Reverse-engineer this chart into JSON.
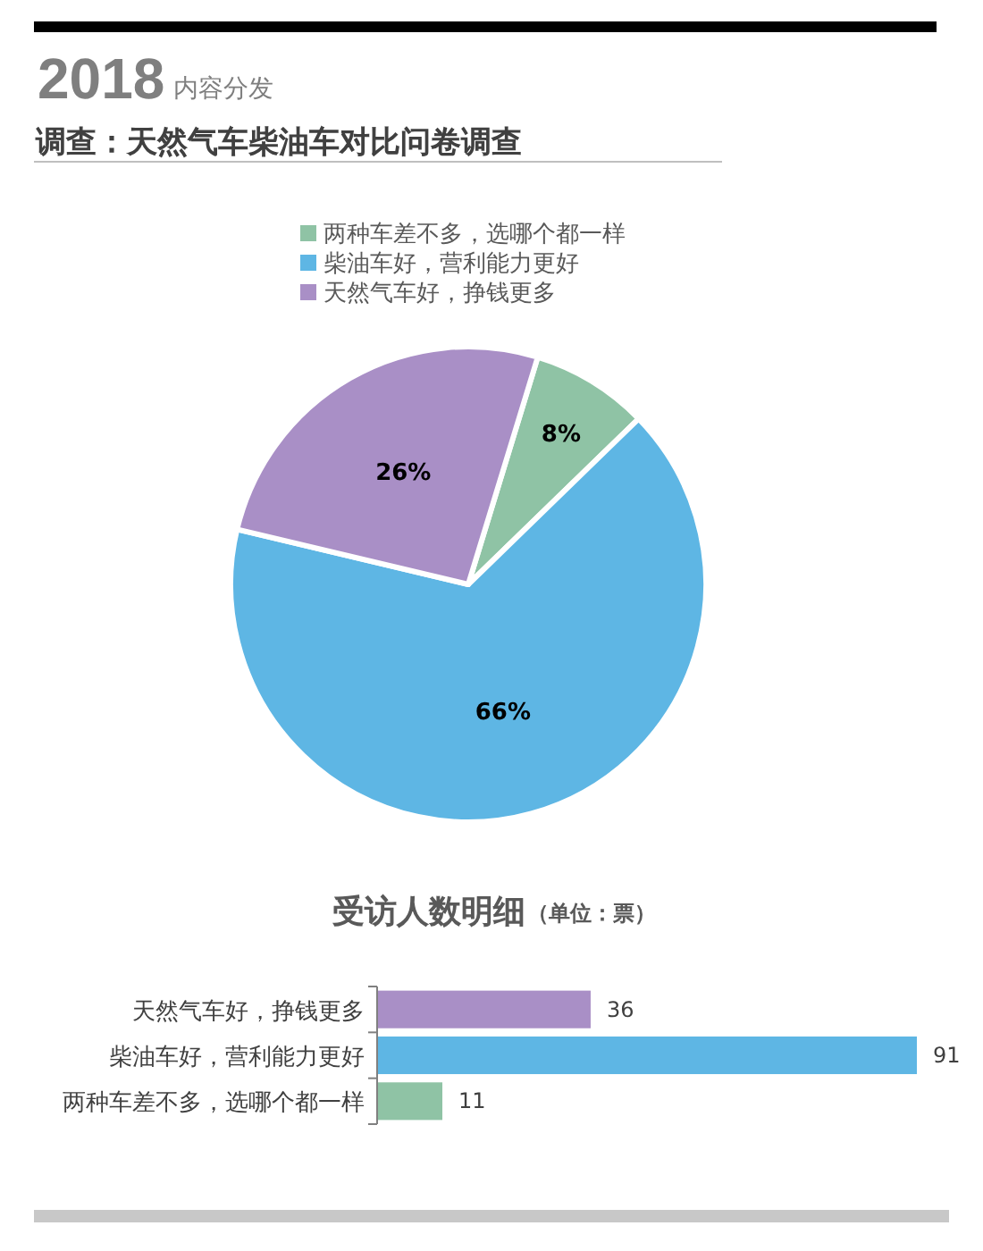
{
  "chart_data": [
    {
      "type": "pie",
      "title": "调查：天然气车柴油车对比问卷调查",
      "annotations": [
        "2018",
        "内容分发"
      ],
      "categories": [
        "两种车差不多，选哪个都一样",
        "柴油车好，营利能力更好",
        "天然气车好，挣钱更多"
      ],
      "values": [
        8,
        66,
        26
      ],
      "colors": [
        "#8fc3a5",
        "#5eb6e4",
        "#a98fc6"
      ],
      "value_labels": [
        "8%",
        "66%",
        "26%"
      ],
      "legend": "top"
    },
    {
      "type": "bar",
      "orientation": "horizontal",
      "title": "受访人数明细",
      "subtitle": "（单位：票）",
      "categories": [
        "天然气车好，挣钱更多",
        "柴油车好，营利能力更好",
        "两种车差不多，选哪个都一样"
      ],
      "values": [
        36,
        91,
        11
      ],
      "colors": [
        "#a98fc6",
        "#5eb6e4",
        "#8fc3a5"
      ],
      "data_labels": true
    }
  ]
}
